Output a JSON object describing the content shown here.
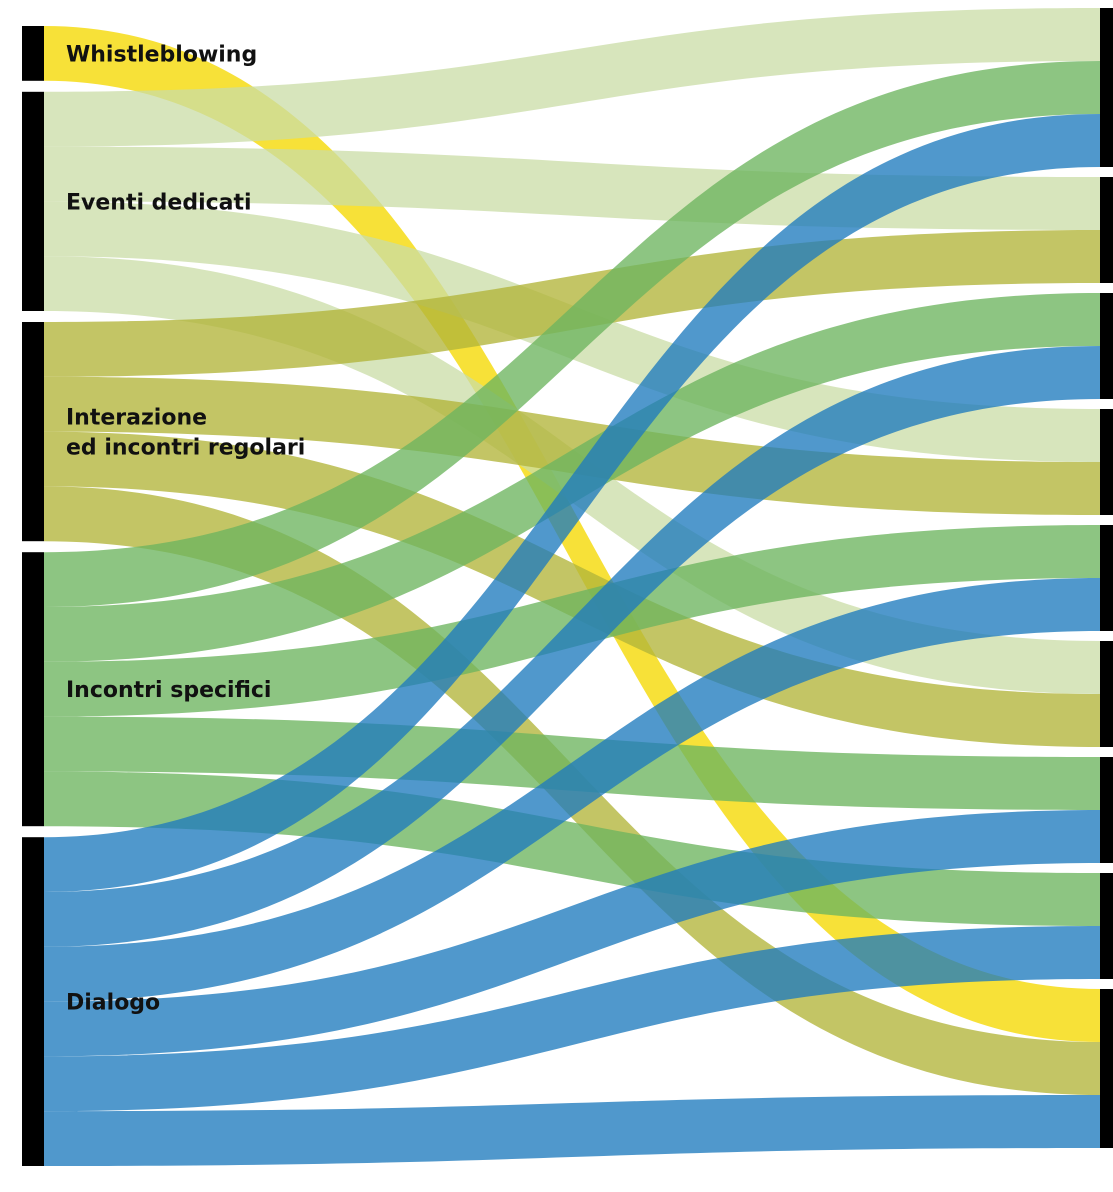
{
  "colors": {
    "whistleblowing": "#f5d800",
    "eventi": "#c9dca6",
    "interazione": "#b2b53a",
    "incontri": "#6db55f",
    "dialogo": "#1f7bbe",
    "bar": "#000000"
  },
  "left_nodes": [
    {
      "key": "whistleblowing",
      "lines": [
        "Whistleblowing"
      ]
    },
    {
      "key": "eventi",
      "lines": [
        "Eventi dedicati"
      ]
    },
    {
      "key": "interazione",
      "lines": [
        "Interazione",
        "ed incontri regolari"
      ]
    },
    {
      "key": "incontri",
      "lines": [
        "Incontri specifici"
      ]
    },
    {
      "key": "dialogo",
      "lines": [
        "Dialogo"
      ]
    }
  ],
  "right_nodes": [
    {
      "id": 0
    },
    {
      "id": 1
    },
    {
      "id": 2
    },
    {
      "id": 3
    },
    {
      "id": 4
    },
    {
      "id": 5
    },
    {
      "id": 6
    },
    {
      "id": 7
    },
    {
      "id": 8
    }
  ],
  "flows": [
    {
      "source": "whistleblowing",
      "target": 8,
      "value": 1
    },
    {
      "source": "eventi",
      "target": 0,
      "value": 1
    },
    {
      "source": "eventi",
      "target": 1,
      "value": 1
    },
    {
      "source": "eventi",
      "target": 3,
      "value": 1
    },
    {
      "source": "eventi",
      "target": 5,
      "value": 1
    },
    {
      "source": "interazione",
      "target": 1,
      "value": 1
    },
    {
      "source": "interazione",
      "target": 3,
      "value": 1
    },
    {
      "source": "interazione",
      "target": 5,
      "value": 1
    },
    {
      "source": "interazione",
      "target": 8,
      "value": 1
    },
    {
      "source": "incontri",
      "target": 0,
      "value": 1
    },
    {
      "source": "incontri",
      "target": 2,
      "value": 1
    },
    {
      "source": "incontri",
      "target": 4,
      "value": 1
    },
    {
      "source": "incontri",
      "target": 6,
      "value": 1
    },
    {
      "source": "incontri",
      "target": 7,
      "value": 1
    },
    {
      "source": "dialogo",
      "target": 0,
      "value": 1
    },
    {
      "source": "dialogo",
      "target": 2,
      "value": 1
    },
    {
      "source": "dialogo",
      "target": 4,
      "value": 1
    },
    {
      "source": "dialogo",
      "target": 6,
      "value": 1
    },
    {
      "source": "dialogo",
      "target": 7,
      "value": 1
    },
    {
      "source": "dialogo",
      "target": 8,
      "value": 1
    }
  ]
}
